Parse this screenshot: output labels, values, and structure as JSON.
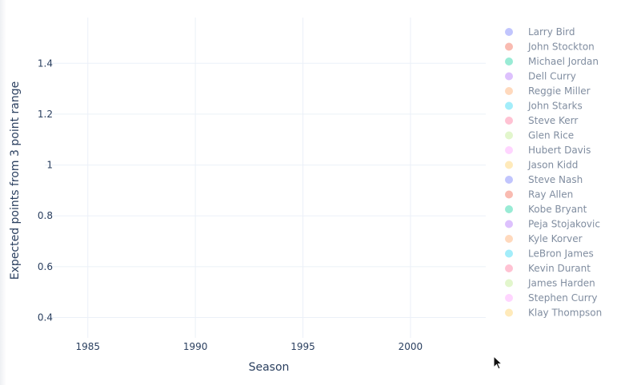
{
  "chart_data": {
    "type": "scatter",
    "title": "",
    "xlabel": "Season",
    "ylabel": "Expected points from 3 point range",
    "xlim": [
      1983,
      2003.5
    ],
    "ylim": [
      0.32,
      1.58
    ],
    "x_ticks": [
      1985,
      1990,
      1995,
      2000
    ],
    "y_ticks": [
      0.4,
      0.6,
      0.8,
      1,
      1.2,
      1.4
    ],
    "y_tick_labels": [
      "0.4",
      "0.6",
      "0.8",
      "1",
      "1.2",
      "1.4"
    ],
    "grid": true,
    "legend_position": "right",
    "series": [
      {
        "name": "Larry Bird",
        "color": "#636efa",
        "points": []
      },
      {
        "name": "John Stockton",
        "color": "#ef553b",
        "points": []
      },
      {
        "name": "Michael Jordan",
        "color": "#00cc96",
        "points": []
      },
      {
        "name": "Dell Curry",
        "color": "#ab63fa",
        "points": []
      },
      {
        "name": "Reggie Miller",
        "color": "#ffa15a",
        "points": []
      },
      {
        "name": "John Starks",
        "color": "#19d3f3",
        "points": []
      },
      {
        "name": "Steve Kerr",
        "color": "#ff6692",
        "points": []
      },
      {
        "name": "Glen Rice",
        "color": "#b6e880",
        "points": []
      },
      {
        "name": "Hubert Davis",
        "color": "#ff97ff",
        "points": []
      },
      {
        "name": "Jason Kidd",
        "color": "#fecb52",
        "points": []
      },
      {
        "name": "Steve Nash",
        "color": "#636efa",
        "points": []
      },
      {
        "name": "Ray Allen",
        "color": "#ef553b",
        "points": []
      },
      {
        "name": "Kobe Bryant",
        "color": "#00cc96",
        "points": []
      },
      {
        "name": "Peja Stojakovic",
        "color": "#ab63fa",
        "points": []
      },
      {
        "name": "Kyle Korver",
        "color": "#ffa15a",
        "points": []
      },
      {
        "name": "LeBron James",
        "color": "#19d3f3",
        "points": []
      },
      {
        "name": "Kevin Durant",
        "color": "#ff6692",
        "points": []
      },
      {
        "name": "James Harden",
        "color": "#b6e880",
        "points": []
      },
      {
        "name": "Stephen Curry",
        "color": "#ff97ff",
        "points": []
      },
      {
        "name": "Klay Thompson",
        "color": "#fecb52",
        "points": []
      }
    ]
  },
  "cursor_icon": "arrow-cursor-icon"
}
